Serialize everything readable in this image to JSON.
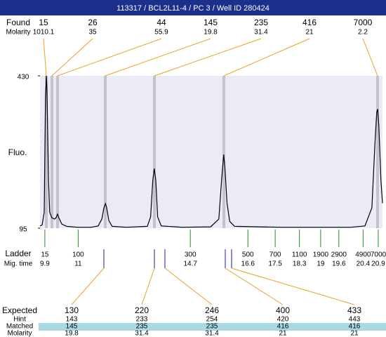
{
  "header": {
    "title": "113317 / BCL2L11-4 / PC 3 / Well ID 280424"
  },
  "found": {
    "label": "Found",
    "molarity_label": "Molarity",
    "sizes": [
      15,
      26,
      44,
      145,
      235,
      416,
      7000
    ],
    "molarity": [
      1010.1,
      35,
      55.9,
      19.8,
      31.4,
      21,
      2.2
    ]
  },
  "chart_data": {
    "type": "line",
    "y_label": "Fluo.",
    "ylim": [
      95,
      430
    ],
    "yticks": [
      95,
      430
    ],
    "xlim": [
      9.74,
      21.04
    ],
    "color": "#000000",
    "x": [
      9.74,
      9.81,
      9.88,
      9.92,
      9.95,
      9.97,
      10.02,
      10.06,
      10.13,
      10.22,
      10.27,
      10.32,
      10.36,
      10.46,
      10.62,
      10.97,
      11.43,
      11.66,
      11.78,
      11.85,
      11.9,
      11.94,
      12.01,
      12.12,
      12.59,
      13.28,
      13.39,
      13.46,
      13.51,
      13.56,
      13.62,
      13.74,
      14.43,
      15.37,
      15.64,
      15.73,
      15.8,
      15.84,
      15.91,
      16.0,
      16.16,
      17.68,
      19.99,
      20.46,
      20.69,
      20.79,
      20.85,
      20.88,
      20.92,
      20.99,
      21.04
    ],
    "values": [
      100,
      102,
      130,
      380,
      430,
      400,
      200,
      130,
      118,
      115,
      118,
      126,
      118,
      104,
      99,
      97,
      97,
      100,
      115,
      140,
      149,
      140,
      112,
      99,
      97,
      99,
      120,
      200,
      226,
      200,
      120,
      100,
      97,
      98,
      115,
      200,
      257,
      230,
      150,
      110,
      99,
      97,
      97,
      100,
      140,
      280,
      350,
      357,
      320,
      200,
      150
    ]
  },
  "ladder": {
    "label": "Ladder",
    "time_label": "Mig. time",
    "sizes": [
      15,
      100,
      300,
      500,
      700,
      1100,
      1900,
      2900,
      4900,
      7000
    ],
    "times": [
      9.9,
      11,
      14.7,
      16.6,
      17.5,
      18.3,
      19,
      19.6,
      20.4,
      20.9
    ]
  },
  "expected": {
    "label": "Expected",
    "hint_label": "Hint",
    "matched_label": "Matched",
    "molarity_label": "Molarity",
    "values": [
      130,
      220,
      246,
      400,
      433
    ],
    "hint": [
      143,
      233,
      254,
      420,
      443
    ],
    "matched": [
      145,
      235,
      235,
      416,
      416
    ],
    "molarity": [
      19.8,
      31.4,
      31.4,
      21,
      21
    ]
  }
}
